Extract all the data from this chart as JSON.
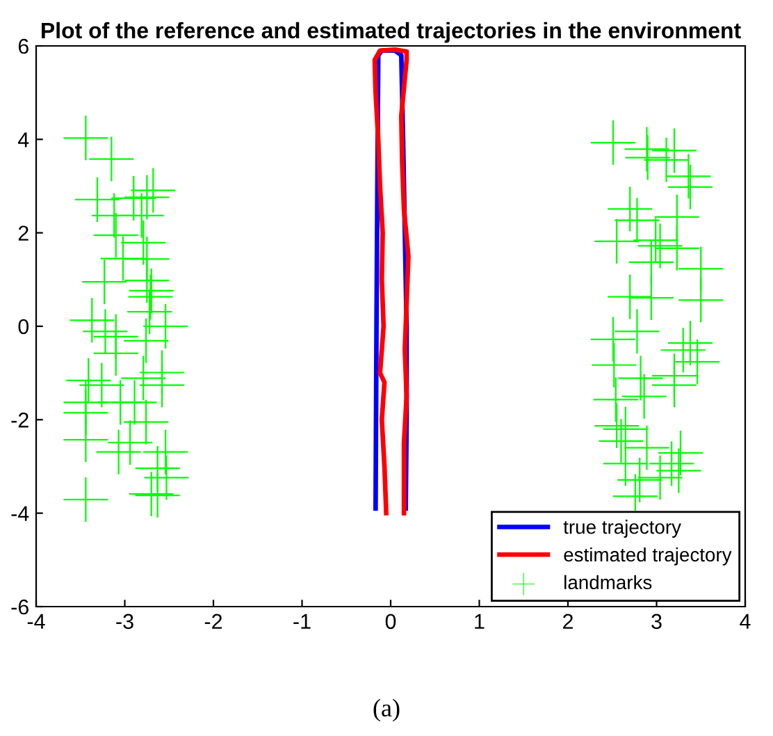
{
  "chart_data": {
    "type": "line",
    "title": "Plot of the reference and estimated trajectories in the environment",
    "xlim": [
      -4,
      4
    ],
    "ylim": [
      -6,
      6
    ],
    "xticks": [
      -4,
      -3,
      -2,
      -1,
      0,
      1,
      2,
      3,
      4
    ],
    "yticks": [
      -6,
      -4,
      -2,
      0,
      2,
      4,
      6
    ],
    "grid": false,
    "legend": "bottom right",
    "series": [
      {
        "name": "true trajectory",
        "color": "#0000ff",
        "type": "line",
        "marker": "none",
        "x": [
          -0.17,
          -0.16,
          -0.15,
          -0.14,
          -0.1,
          0.05,
          0.12,
          0.14,
          0.16,
          0.18,
          0.18,
          0.17
        ],
        "values": [
          -3.9,
          0,
          3,
          5.8,
          5.9,
          5.9,
          5.8,
          4,
          2,
          0,
          -2,
          -3.9
        ]
      },
      {
        "name": "estimated trajectory",
        "color": "#ff0000",
        "type": "line",
        "marker": "none",
        "x": [
          -0.05,
          -0.07,
          -0.1,
          -0.07,
          -0.12,
          -0.08,
          -0.1,
          -0.09,
          -0.12,
          -0.14,
          -0.17,
          -0.18,
          -0.12,
          0.05,
          0.18,
          0.18,
          0.12,
          0.13,
          0.15,
          0.2,
          0.18,
          0.16,
          0.18,
          0.15,
          0.15
        ],
        "values": [
          -4.0,
          -3,
          -2,
          -1.2,
          -1,
          0,
          1,
          2,
          3,
          4,
          5,
          5.7,
          5.9,
          5.92,
          5.88,
          5.7,
          4.5,
          3.5,
          2.5,
          1.5,
          0.5,
          -0.5,
          -1.5,
          -2.5,
          -4.0
        ]
      },
      {
        "name": "landmarks",
        "color": "#00ff00",
        "type": "scatter",
        "marker": "cross",
        "x": [
          -3.44,
          -3.15,
          -3.31,
          -2.75,
          -2.9,
          -2.68,
          -3.12,
          -2.81,
          -3.1,
          -2.79,
          -3.02,
          -2.75,
          -3.23,
          -2.75,
          -2.7,
          -2.71,
          -3.37,
          -2.72,
          -3.22,
          -2.54,
          -3.1,
          -2.76,
          -3.1,
          -2.58,
          -2.79,
          -3.41,
          -3.26,
          -2.58,
          -3.44,
          -3.05,
          -2.89,
          -3.44,
          -2.76,
          -2.94,
          -3.44,
          -3.07,
          -2.54,
          -2.63,
          -2.53,
          -2.7,
          -2.63,
          -3.44,
          2.51,
          2.89,
          2.9,
          3.2,
          3.11,
          3.36,
          3.38,
          2.7,
          2.78,
          2.55,
          3.23,
          2.99,
          3.04,
          2.94,
          3.23,
          3.5,
          3.5,
          2.7,
          2.94,
          2.78,
          2.51,
          3.38,
          3.3,
          3.46,
          2.52,
          2.82,
          3.2,
          3.2,
          2.86,
          2.54,
          2.55,
          2.65,
          2.6,
          2.89,
          3.27,
          2.65,
          3.17,
          3.25,
          3.04,
          2.81,
          2.76
        ],
        "values": [
          4.03,
          3.58,
          2.71,
          2.76,
          2.74,
          2.91,
          2.37,
          2.37,
          1.95,
          1.79,
          1.45,
          1.44,
          0.95,
          0.98,
          0.76,
          0.63,
          0.13,
          0.31,
          -0.11,
          0.0,
          -0.22,
          -0.31,
          -0.58,
          -0.99,
          -1.11,
          -1.16,
          -1.26,
          -1.26,
          -1.63,
          -1.63,
          -1.63,
          -1.85,
          -2.05,
          -2.49,
          -2.43,
          -2.69,
          -2.69,
          -3.04,
          -3.24,
          -3.59,
          -3.62,
          -3.71,
          3.93,
          3.79,
          3.61,
          3.76,
          3.56,
          3.21,
          2.98,
          2.51,
          2.27,
          1.82,
          2.34,
          1.84,
          1.72,
          1.37,
          1.67,
          1.23,
          0.56,
          0.63,
          0.61,
          -0.11,
          -0.28,
          -0.36,
          -0.51,
          -0.76,
          -0.83,
          -1.11,
          -1.06,
          -1.26,
          -1.5,
          -1.57,
          -2.13,
          -2.2,
          -2.46,
          -2.6,
          -2.71,
          -2.94,
          -2.94,
          -3.09,
          -3.24,
          -3.29,
          -3.64
        ]
      }
    ],
    "annotations": [
      "(a)"
    ]
  }
}
